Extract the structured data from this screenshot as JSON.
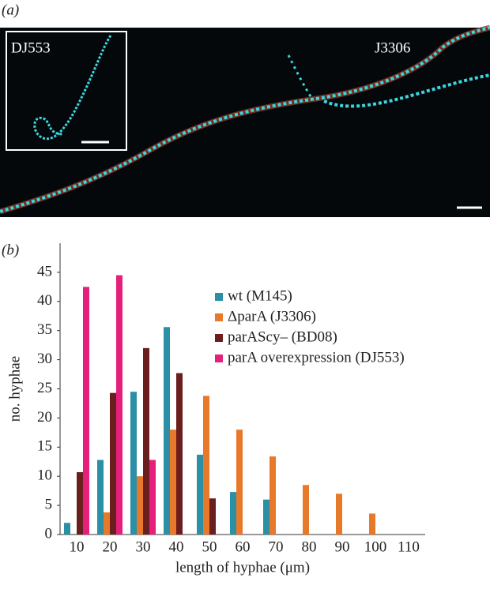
{
  "panel_a": {
    "label": "(a)",
    "inset_label": "DJ553",
    "main_label": "J3306"
  },
  "panel_b": {
    "label": "(b)"
  },
  "chart_data": {
    "type": "bar",
    "xlabel": "length of hyphae (μm)",
    "ylabel": "no. hyphae",
    "categories": [
      "10",
      "20",
      "30",
      "40",
      "50",
      "60",
      "70",
      "80",
      "90",
      "100",
      "110"
    ],
    "series": [
      {
        "name": "wt (M145)",
        "color": "#2b8fa6",
        "values": [
          2,
          12.8,
          24.5,
          35.6,
          13.7,
          7.3,
          6,
          0,
          0,
          0,
          0
        ]
      },
      {
        "name": "ΔparA (J3306)",
        "color": "#e8792b",
        "values": [
          0,
          3.8,
          10,
          18,
          23.8,
          18,
          13.4,
          8.5,
          7,
          3.6,
          0
        ]
      },
      {
        "name": "parAScy– (BD08)",
        "color": "#6b1e1e",
        "values": [
          10.7,
          24.3,
          32,
          27.7,
          6.2,
          0,
          0,
          0,
          0,
          0,
          0
        ]
      },
      {
        "name": "parA overexpression (DJ553)",
        "color": "#e5207a",
        "values": [
          42.5,
          44.5,
          12.8,
          0,
          0,
          0,
          0,
          0,
          0,
          0,
          0
        ]
      }
    ],
    "ylim": [
      0,
      50
    ],
    "yticks": [
      0,
      5,
      10,
      15,
      20,
      25,
      30,
      35,
      40,
      45
    ],
    "legend": "upper right"
  }
}
